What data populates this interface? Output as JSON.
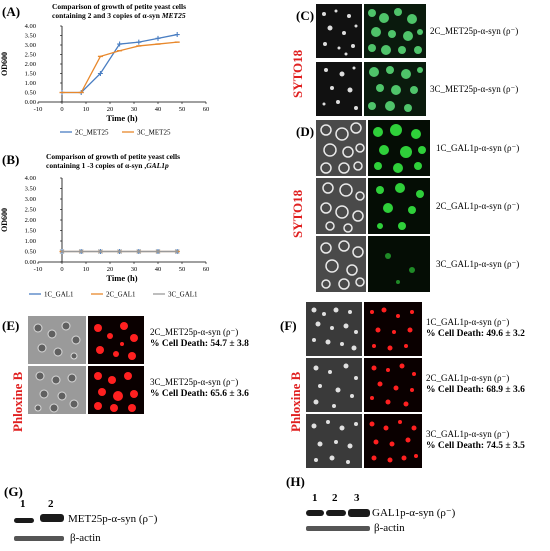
{
  "panels": {
    "A": {
      "label": "(A)"
    },
    "B": {
      "label": "(B)"
    },
    "C": {
      "label": "(C)",
      "side_label": "SYTO18",
      "captions": [
        "2C_MET25p-α-syn (ρ⁻)",
        "3C_MET25p-α-syn (ρ⁻)"
      ]
    },
    "D": {
      "label": "(D)",
      "side_label": "SYTO18",
      "captions": [
        "1C_GAL1p-α-syn (ρ⁻)",
        "2C_GAL1p-α-syn (ρ⁻)",
        "3C_GAL1p-α-syn (ρ⁻)"
      ]
    },
    "E": {
      "label": "(E)",
      "side_label": "Phloxine B",
      "rows": [
        {
          "strain": "2C_MET25p-α-syn (ρ⁻)",
          "death": "% Cell Death: 54.7 ± 3.8"
        },
        {
          "strain": "3C_MET25p-α-syn (ρ⁻)",
          "death": "% Cell Death: 65.6 ± 3.6"
        }
      ]
    },
    "F": {
      "label": "(F)",
      "side_label": "Phloxine B",
      "rows": [
        {
          "strain": "1C_GAL1p-α-syn (ρ⁻)",
          "death": "% Cell Death: 49.6 ± 3.2"
        },
        {
          "strain": "2C_GAL1p-α-syn (ρ⁻)",
          "death": "% Cell Death: 68.9 ± 3.6"
        },
        {
          "strain": "3C_GAL1p-α-syn (ρ⁻)",
          "death": "% Cell Death: 74.5 ± 3.5"
        }
      ]
    },
    "G": {
      "label": "(G)",
      "lanes": [
        "1",
        "2"
      ],
      "target": "MET25p-α-syn (ρ⁻)",
      "control": "β-actin"
    },
    "H": {
      "label": "(H)",
      "lanes": [
        "1",
        "2",
        "3"
      ],
      "target": "GAL1p-α-syn (ρ⁻)",
      "control": "β-actin"
    }
  },
  "chart_data": [
    {
      "type": "line",
      "title_line1": "Comparison of growth of petite yeast cells",
      "title_line2_prefix": "containing  2 and 3 copies of   α-syn ",
      "title_line2_em": "MET25",
      "xlabel": "Time (h)",
      "ylabel": "OD600",
      "xlim": [
        -10,
        60
      ],
      "ylim": [
        0,
        4
      ],
      "xticks": [
        -10,
        0,
        10,
        20,
        30,
        40,
        50,
        60
      ],
      "yticks": [
        "0.00",
        "0.50",
        "1.00",
        "1.50",
        "2.00",
        "2.50",
        "3.00",
        "3.50",
        "4.00"
      ],
      "series": [
        {
          "name": "2C_MET25",
          "color": "#4a7ec2",
          "x": [
            0,
            8,
            16,
            24,
            32,
            40,
            48
          ],
          "y": [
            0.5,
            0.5,
            1.5,
            3.05,
            3.15,
            3.35,
            3.55
          ]
        },
        {
          "name": "3C_MET25",
          "color": "#e8882c",
          "x": [
            0,
            8,
            16,
            24,
            32,
            40,
            48
          ],
          "y": [
            0.5,
            0.5,
            2.4,
            2.7,
            2.95,
            3.05,
            3.15
          ]
        }
      ]
    },
    {
      "type": "line",
      "title_line1": "Comparison of growth of petite yeast cells",
      "title_line2_prefix": "containing 1 -3 copies of  α-syn ,",
      "title_line2_em": "GAL1p",
      "xlabel": "Time (h)",
      "ylabel": "OD600",
      "xlim": [
        -10,
        60
      ],
      "ylim": [
        0,
        4
      ],
      "xticks": [
        -10,
        0,
        10,
        20,
        30,
        40,
        50,
        60
      ],
      "yticks": [
        "0.00",
        "0.50",
        "1.00",
        "1.50",
        "2.00",
        "2.50",
        "3.00",
        "3.50",
        "4.00"
      ],
      "series": [
        {
          "name": "1C_GAL1",
          "color": "#4a7ec2",
          "x": [
            0,
            8,
            16,
            24,
            32,
            40,
            48
          ],
          "y": [
            0.5,
            0.5,
            0.5,
            0.5,
            0.5,
            0.5,
            0.5
          ]
        },
        {
          "name": "2C_GAL1",
          "color": "#e8882c",
          "x": [
            0,
            8,
            16,
            24,
            32,
            40,
            48
          ],
          "y": [
            0.5,
            0.5,
            0.5,
            0.5,
            0.5,
            0.5,
            0.5
          ]
        },
        {
          "name": "3C_GAL1",
          "color": "#9a9a9a",
          "x": [
            0,
            8,
            16,
            24,
            32,
            40,
            48
          ],
          "y": [
            0.5,
            0.5,
            0.5,
            0.5,
            0.5,
            0.5,
            0.5
          ]
        }
      ]
    }
  ]
}
